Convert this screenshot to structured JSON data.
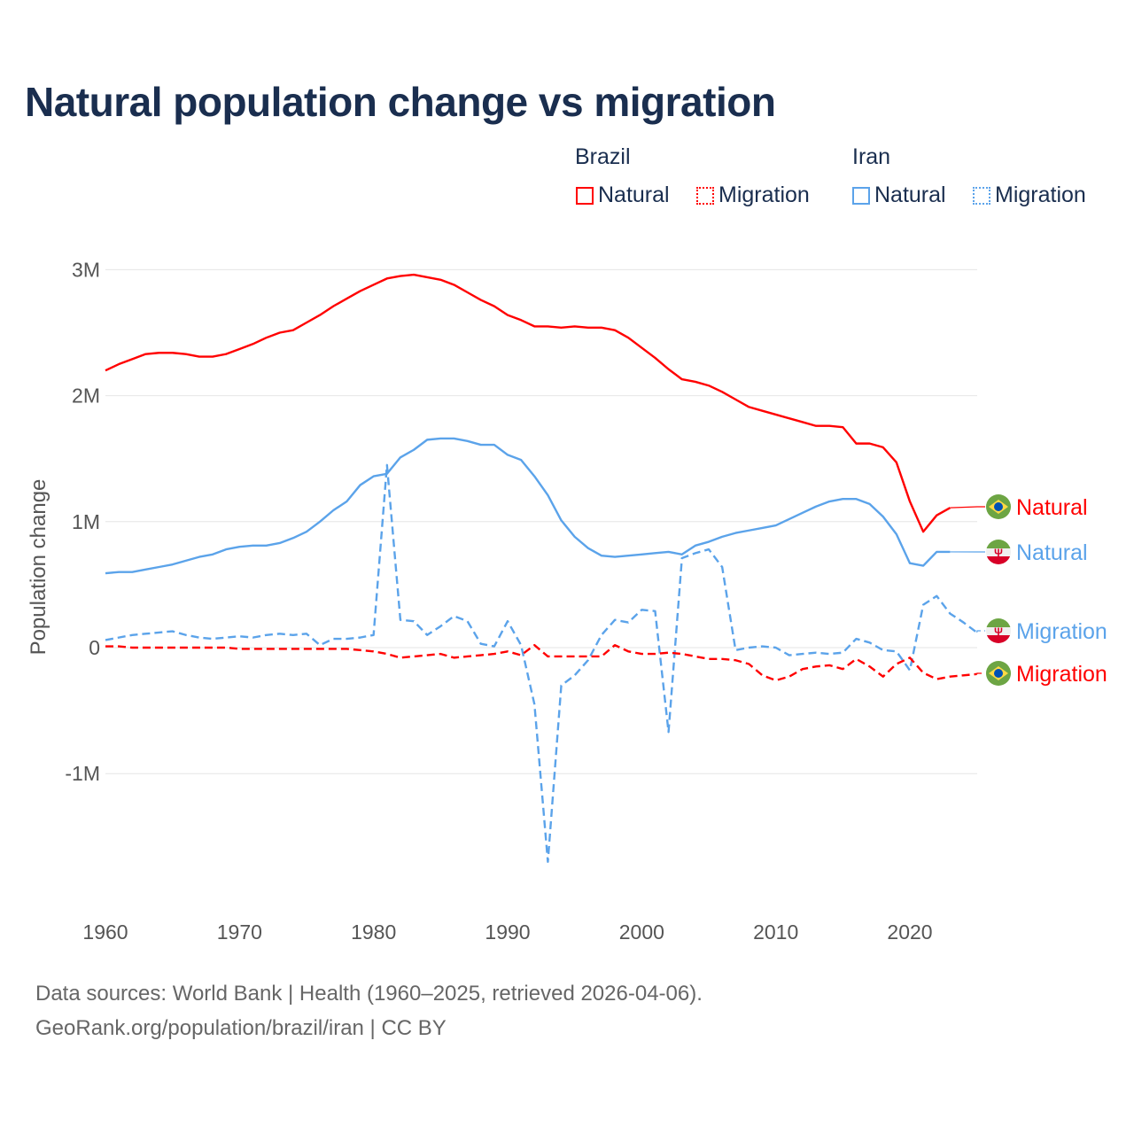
{
  "title": "Natural population change vs migration",
  "legend": {
    "groups": [
      {
        "name": "Brazil",
        "items": [
          {
            "label": "Natural",
            "style": "solid",
            "color": "#ff0000"
          },
          {
            "label": "Migration",
            "style": "dotted",
            "color": "#ff0000"
          }
        ]
      },
      {
        "name": "Iran",
        "items": [
          {
            "label": "Natural",
            "style": "solid",
            "color": "#5ba3ea"
          },
          {
            "label": "Migration",
            "style": "dotted",
            "color": "#5ba3ea"
          }
        ]
      }
    ]
  },
  "footer": {
    "line1": "Data sources: World Bank | Health (1960–2025, retrieved 2026-04-06).",
    "line2": "GeoRank.org/population/brazil/iran | CC BY"
  },
  "chart_data": {
    "type": "line",
    "title": "Natural population change vs migration",
    "xlabel": "",
    "ylabel": "Population change",
    "xlim": [
      1960,
      2025
    ],
    "ylim": [
      -1.9,
      3.0
    ],
    "unit": "millions",
    "grid": true,
    "legend_position": "top-right",
    "x_ticks": [
      1960,
      1970,
      1980,
      1990,
      2000,
      2010,
      2020
    ],
    "x_tick_labels": [
      "1960",
      "1970",
      "1980",
      "1990",
      "2000",
      "2010",
      "2020"
    ],
    "y_ticks": [
      3,
      2,
      1,
      0,
      -1
    ],
    "y_tick_labels": [
      "3M",
      "2M",
      "1M",
      "0",
      "-1M"
    ],
    "series": [
      {
        "name": "Brazil Natural",
        "country": "Brazil",
        "label": "Natural",
        "color": "#ff0000",
        "dash": "solid",
        "start": 1960,
        "values": [
          2.2,
          2.25,
          2.29,
          2.33,
          2.34,
          2.34,
          2.33,
          2.31,
          2.31,
          2.33,
          2.37,
          2.41,
          2.46,
          2.5,
          2.52,
          2.58,
          2.64,
          2.71,
          2.77,
          2.83,
          2.88,
          2.93,
          2.95,
          2.96,
          2.94,
          2.92,
          2.88,
          2.82,
          2.76,
          2.71,
          2.64,
          2.6,
          2.55,
          2.55,
          2.54,
          2.55,
          2.54,
          2.54,
          2.52,
          2.46,
          2.38,
          2.3,
          2.21,
          2.13,
          2.11,
          2.08,
          2.03,
          1.97,
          1.91,
          1.88,
          1.85,
          1.82,
          1.79,
          1.76,
          1.76,
          1.75,
          1.62,
          1.62,
          1.59,
          1.47,
          1.16,
          0.92,
          1.05,
          1.11
        ]
      },
      {
        "name": "Iran Natural",
        "country": "Iran",
        "label": "Natural",
        "color": "#5ba3ea",
        "dash": "solid",
        "start": 1960,
        "values": [
          0.59,
          0.6,
          0.6,
          0.62,
          0.64,
          0.66,
          0.69,
          0.72,
          0.74,
          0.78,
          0.8,
          0.81,
          0.81,
          0.83,
          0.87,
          0.92,
          1.0,
          1.09,
          1.16,
          1.29,
          1.36,
          1.38,
          1.51,
          1.57,
          1.65,
          1.66,
          1.66,
          1.64,
          1.61,
          1.61,
          1.53,
          1.49,
          1.36,
          1.21,
          1.01,
          0.88,
          0.79,
          0.73,
          0.72,
          0.73,
          0.74,
          0.75,
          0.76,
          0.74,
          0.81,
          0.84,
          0.88,
          0.91,
          0.93,
          0.95,
          0.97,
          1.02,
          1.07,
          1.12,
          1.16,
          1.18,
          1.18,
          1.14,
          1.04,
          0.9,
          0.67,
          0.65,
          0.76,
          0.76
        ]
      },
      {
        "name": "Iran Migration",
        "country": "Iran",
        "label": "Migration",
        "color": "#5ba3ea",
        "dash": "dashed",
        "start": 1960,
        "values": [
          0.06,
          0.08,
          0.1,
          0.11,
          0.12,
          0.13,
          0.1,
          0.08,
          0.07,
          0.08,
          0.09,
          0.08,
          0.1,
          0.11,
          0.1,
          0.11,
          0.02,
          0.07,
          0.07,
          0.08,
          0.1,
          1.45,
          0.22,
          0.21,
          0.1,
          0.17,
          0.25,
          0.21,
          0.03,
          0.01,
          0.21,
          0.02,
          -0.45,
          -1.7,
          -0.3,
          -0.22,
          -0.1,
          0.1,
          0.22,
          0.2,
          0.3,
          0.29,
          -0.67,
          0.71,
          0.75,
          0.78,
          0.64,
          -0.02,
          0.0,
          0.01,
          0.0,
          -0.06,
          -0.05,
          -0.04,
          -0.05,
          -0.04,
          0.07,
          0.04,
          -0.02,
          -0.03,
          -0.18,
          0.34,
          0.41,
          0.27,
          0.2,
          0.12
        ]
      },
      {
        "name": "Brazil Migration",
        "country": "Brazil",
        "label": "Migration",
        "color": "#ff0000",
        "dash": "dashed",
        "start": 1960,
        "values": [
          0.01,
          0.01,
          0.0,
          0.0,
          0.0,
          0.0,
          0.0,
          0.0,
          0.0,
          0.0,
          -0.01,
          -0.01,
          -0.01,
          -0.01,
          -0.01,
          -0.01,
          -0.01,
          -0.01,
          -0.01,
          -0.02,
          -0.03,
          -0.05,
          -0.08,
          -0.07,
          -0.06,
          -0.05,
          -0.08,
          -0.07,
          -0.06,
          -0.05,
          -0.03,
          -0.06,
          0.02,
          -0.07,
          -0.07,
          -0.07,
          -0.07,
          -0.07,
          0.02,
          -0.03,
          -0.05,
          -0.05,
          -0.04,
          -0.05,
          -0.07,
          -0.09,
          -0.09,
          -0.1,
          -0.13,
          -0.22,
          -0.26,
          -0.23,
          -0.17,
          -0.15,
          -0.14,
          -0.17,
          -0.09,
          -0.15,
          -0.23,
          -0.13,
          -0.08,
          -0.2,
          -0.25,
          -0.23,
          -0.22,
          -0.21
        ]
      }
    ]
  }
}
